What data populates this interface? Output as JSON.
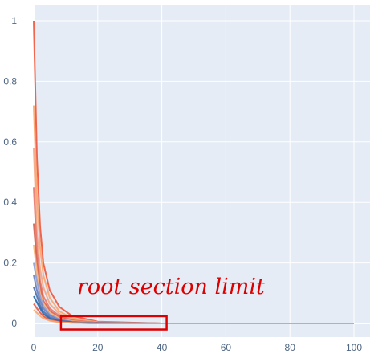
{
  "colors": {
    "plot_background": "#e5ecf6",
    "gridline": "#ffffff",
    "tick_text": "#506784",
    "annotation": "#dd0000",
    "series_palette": [
      "#ef553b",
      "#fca46a",
      "#f4a582",
      "#e8756a",
      "#d6604d",
      "#f7b27a",
      "#8e9fd0",
      "#6a7fbf",
      "#4c6fa8",
      "#2166ac"
    ]
  },
  "chart_data": {
    "type": "line",
    "title": "",
    "xlabel": "",
    "ylabel": "",
    "xlim": [
      0,
      100
    ],
    "ylim": [
      0,
      1
    ],
    "x_ticks": [
      0,
      20,
      40,
      60,
      80,
      100
    ],
    "y_ticks": [
      0,
      0.2,
      0.4,
      0.6,
      0.8,
      1
    ],
    "x_tick_labels": [
      "0",
      "20",
      "40",
      "60",
      "80",
      "100"
    ],
    "y_tick_labels": [
      "0",
      "0.2",
      "0.4",
      "0.6",
      "0.8",
      "1"
    ],
    "grid": true,
    "legend": "none",
    "series_description": "many overlapping decaying curves; peak near x=0 and approaching 0 by about x=20, then flat at 0 up to x=100",
    "series": [
      {
        "x": [
          0,
          1,
          2,
          3,
          5,
          8,
          12,
          20,
          40,
          100
        ],
        "values": [
          1.0,
          0.55,
          0.32,
          0.2,
          0.11,
          0.055,
          0.025,
          0.006,
          0.0,
          0.0
        ]
      },
      {
        "x": [
          0,
          1,
          2,
          3,
          5,
          8,
          12,
          20,
          40,
          100
        ],
        "values": [
          0.72,
          0.42,
          0.25,
          0.16,
          0.085,
          0.04,
          0.018,
          0.004,
          0.0,
          0.0
        ]
      },
      {
        "x": [
          0,
          1,
          2,
          3,
          5,
          8,
          12,
          20,
          40,
          100
        ],
        "values": [
          0.58,
          0.3,
          0.18,
          0.12,
          0.065,
          0.032,
          0.014,
          0.003,
          0.0,
          0.0
        ]
      },
      {
        "x": [
          0,
          1,
          2,
          3,
          5,
          8,
          12,
          20,
          40,
          100
        ],
        "values": [
          0.45,
          0.24,
          0.14,
          0.09,
          0.05,
          0.025,
          0.011,
          0.002,
          0.0,
          0.0
        ]
      },
      {
        "x": [
          0,
          1,
          2,
          3,
          5,
          8,
          12,
          20,
          40,
          100
        ],
        "values": [
          0.33,
          0.2,
          0.12,
          0.075,
          0.042,
          0.02,
          0.009,
          0.002,
          0.0,
          0.0
        ]
      },
      {
        "x": [
          0,
          1,
          2,
          3,
          5,
          8,
          12,
          20,
          40,
          100
        ],
        "values": [
          0.26,
          0.17,
          0.1,
          0.066,
          0.036,
          0.017,
          0.008,
          0.001,
          0.0,
          0.0
        ]
      },
      {
        "x": [
          0,
          1,
          2,
          3,
          5,
          8,
          12,
          20,
          40,
          100
        ],
        "values": [
          0.2,
          0.14,
          0.09,
          0.058,
          0.03,
          0.014,
          0.006,
          0.001,
          0.0,
          0.0
        ]
      },
      {
        "x": [
          0,
          1,
          2,
          3,
          5,
          8,
          12,
          20,
          40,
          100
        ],
        "values": [
          0.16,
          0.11,
          0.075,
          0.05,
          0.026,
          0.012,
          0.005,
          0.001,
          0.0,
          0.0
        ]
      },
      {
        "x": [
          0,
          1,
          2,
          3,
          5,
          8,
          12,
          20,
          40,
          100
        ],
        "values": [
          0.12,
          0.09,
          0.06,
          0.04,
          0.02,
          0.009,
          0.004,
          0.001,
          0.0,
          0.0
        ]
      },
      {
        "x": [
          0,
          1,
          2,
          3,
          5,
          8,
          12,
          20,
          40,
          100
        ],
        "values": [
          0.09,
          0.07,
          0.05,
          0.032,
          0.016,
          0.007,
          0.003,
          0.0,
          0.0,
          0.0
        ]
      },
      {
        "x": [
          0,
          1,
          2,
          3,
          5,
          8,
          12,
          20,
          40,
          100
        ],
        "values": [
          0.065,
          0.05,
          0.036,
          0.024,
          0.012,
          0.005,
          0.002,
          0.0,
          0.0,
          0.0
        ]
      },
      {
        "x": [
          0,
          1,
          2,
          3,
          5,
          8,
          12,
          20,
          40,
          100
        ],
        "values": [
          0.045,
          0.035,
          0.025,
          0.017,
          0.009,
          0.004,
          0.002,
          0.0,
          0.0,
          0.0
        ]
      }
    ],
    "annotation": {
      "text": "root section limit",
      "box_x_range": [
        8.5,
        41.5
      ],
      "box_y_range": [
        -0.02,
        0.024
      ]
    }
  }
}
